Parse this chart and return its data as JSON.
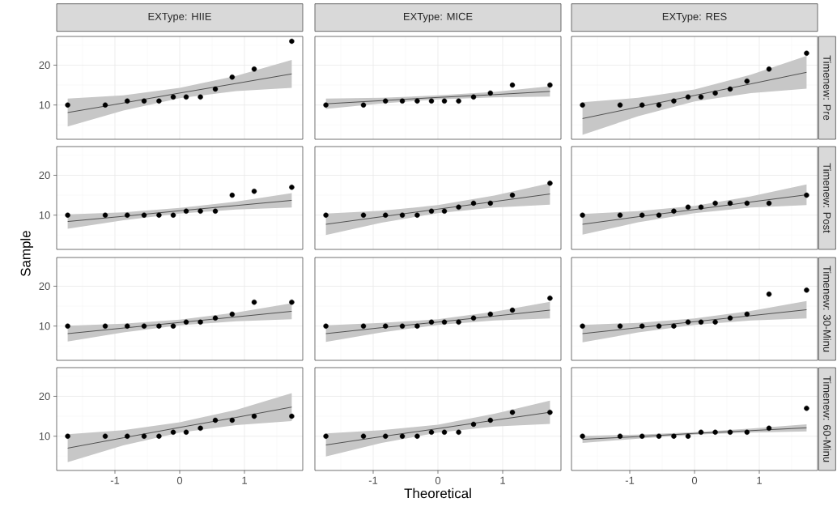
{
  "chart_data": [
    {
      "type": "scatter",
      "title": "EXType: HIIE",
      "x": [
        -1.73,
        -1.15,
        -0.81,
        -0.55,
        -0.32,
        -0.1,
        0.1,
        0.32,
        0.55,
        0.81,
        1.15,
        1.73
      ],
      "xlim": [
        -1.9,
        1.9
      ],
      "ylim": [
        1.4,
        27.2
      ],
      "xticks": [
        -1,
        0,
        1
      ],
      "yticks": [
        10,
        20
      ],
      "grid": true,
      "tick_labels": "y",
      "series": [
        {
          "type": "scatter",
          "color": "#000000",
          "marker": "circle",
          "values": [
            10,
            10,
            11,
            11,
            11,
            12,
            12,
            12,
            14,
            17,
            19,
            26
          ]
        },
        {
          "type": "line",
          "color": "#000000",
          "marker": "none",
          "x": [
            -1.73,
            -0.87,
            0,
            0.87,
            1.73
          ],
          "values": [
            8.1,
            10.5,
            13.0,
            15.4,
            17.8
          ],
          "lower": [
            4.6,
            8.6,
            11.7,
            13.5,
            14.3
          ],
          "upper": [
            11.6,
            12.4,
            14.3,
            17.3,
            21.3
          ]
        }
      ]
    },
    {
      "type": "scatter",
      "title": "EXType: MICE",
      "x": [
        -1.73,
        -1.15,
        -0.81,
        -0.55,
        -0.32,
        -0.1,
        0.1,
        0.32,
        0.55,
        0.81,
        1.15,
        1.73
      ],
      "xlim": [
        -1.9,
        1.9
      ],
      "ylim": [
        1.4,
        27.2
      ],
      "xticks": [
        -1,
        0,
        1
      ],
      "yticks": [
        10,
        20
      ],
      "grid": true,
      "tick_labels": false,
      "series": [
        {
          "type": "scatter",
          "color": "#000000",
          "marker": "circle",
          "values": [
            10,
            10,
            11,
            11,
            11,
            11,
            11,
            11,
            12,
            13,
            15,
            15
          ]
        },
        {
          "type": "line",
          "color": "#000000",
          "marker": "none",
          "x": [
            -1.73,
            -0.87,
            0,
            0.87,
            1.73
          ],
          "values": [
            10.3,
            11.1,
            11.9,
            12.6,
            13.4
          ],
          "lower": [
            9.0,
            10.4,
            11.4,
            11.9,
            12.1
          ],
          "upper": [
            11.6,
            11.8,
            12.4,
            13.3,
            14.7
          ]
        }
      ]
    },
    {
      "type": "scatter",
      "title": "EXType: RES",
      "annotations": [
        "Timenew: Pre"
      ],
      "x": [
        -1.73,
        -1.15,
        -0.81,
        -0.55,
        -0.32,
        -0.1,
        0.1,
        0.32,
        0.55,
        0.81,
        1.15,
        1.73
      ],
      "xlim": [
        -1.9,
        1.9
      ],
      "ylim": [
        1.4,
        27.2
      ],
      "xticks": [
        -1,
        0,
        1
      ],
      "yticks": [
        10,
        20
      ],
      "grid": true,
      "tick_labels": false,
      "series": [
        {
          "type": "scatter",
          "color": "#000000",
          "marker": "circle",
          "values": [
            10,
            10,
            10,
            10,
            11,
            12,
            12,
            13,
            14,
            16,
            19,
            23
          ]
        },
        {
          "type": "line",
          "color": "#000000",
          "marker": "none",
          "x": [
            -1.73,
            -0.87,
            0,
            0.87,
            1.73
          ],
          "values": [
            6.6,
            9.5,
            12.4,
            15.3,
            18.2
          ],
          "lower": [
            2.5,
            7.2,
            10.9,
            13.0,
            14.1
          ],
          "upper": [
            10.7,
            11.8,
            13.9,
            17.6,
            22.3
          ]
        }
      ]
    },
    {
      "type": "scatter",
      "ylabel": "Sample",
      "x": [
        -1.73,
        -1.15,
        -0.81,
        -0.55,
        -0.32,
        -0.1,
        0.1,
        0.32,
        0.55,
        0.81,
        1.15,
        1.73
      ],
      "xlim": [
        -1.9,
        1.9
      ],
      "ylim": [
        1.4,
        27.2
      ],
      "xticks": [
        -1,
        0,
        1
      ],
      "yticks": [
        10,
        20
      ],
      "grid": true,
      "tick_labels": "y",
      "series": [
        {
          "type": "scatter",
          "color": "#000000",
          "marker": "circle",
          "values": [
            10,
            10,
            10,
            10,
            10,
            10,
            11,
            11,
            11,
            15,
            16,
            17
          ]
        },
        {
          "type": "line",
          "color": "#000000",
          "marker": "none",
          "x": [
            -1.73,
            -0.87,
            0,
            0.87,
            1.73
          ],
          "values": [
            8.4,
            9.7,
            11.1,
            12.4,
            13.7
          ],
          "lower": [
            6.6,
            8.7,
            10.4,
            11.4,
            11.9
          ],
          "upper": [
            10.2,
            10.7,
            11.8,
            13.4,
            15.5
          ]
        }
      ]
    },
    {
      "type": "scatter",
      "x": [
        -1.73,
        -1.15,
        -0.81,
        -0.55,
        -0.32,
        -0.1,
        0.1,
        0.32,
        0.55,
        0.81,
        1.15,
        1.73
      ],
      "xlim": [
        -1.9,
        1.9
      ],
      "ylim": [
        1.4,
        27.2
      ],
      "xticks": [
        -1,
        0,
        1
      ],
      "yticks": [
        10,
        20
      ],
      "grid": true,
      "tick_labels": false,
      "series": [
        {
          "type": "scatter",
          "color": "#000000",
          "marker": "circle",
          "values": [
            10,
            10,
            10,
            10,
            10,
            11,
            11,
            12,
            13,
            13,
            15,
            18
          ]
        },
        {
          "type": "line",
          "color": "#000000",
          "marker": "none",
          "x": [
            -1.73,
            -0.87,
            0,
            0.87,
            1.73
          ],
          "values": [
            7.7,
            9.6,
            11.5,
            13.4,
            15.3
          ],
          "lower": [
            5.0,
            8.1,
            10.5,
            11.9,
            12.6
          ],
          "upper": [
            10.4,
            11.1,
            12.5,
            14.9,
            18.0
          ]
        }
      ]
    },
    {
      "type": "scatter",
      "annotations": [
        "Timenew: Post"
      ],
      "x": [
        -1.73,
        -1.15,
        -0.81,
        -0.55,
        -0.32,
        -0.1,
        0.1,
        0.32,
        0.55,
        0.81,
        1.15,
        1.73
      ],
      "xlim": [
        -1.9,
        1.9
      ],
      "ylim": [
        1.4,
        27.2
      ],
      "xticks": [
        -1,
        0,
        1
      ],
      "yticks": [
        10,
        20
      ],
      "grid": true,
      "tick_labels": false,
      "series": [
        {
          "type": "scatter",
          "color": "#000000",
          "marker": "circle",
          "values": [
            10,
            10,
            10,
            10,
            11,
            12,
            12,
            13,
            13,
            13,
            13,
            15
          ]
        },
        {
          "type": "line",
          "color": "#000000",
          "marker": "none",
          "x": [
            -1.73,
            -0.87,
            0,
            0.87,
            1.73
          ],
          "values": [
            7.7,
            9.6,
            11.4,
            13.3,
            15.1
          ],
          "lower": [
            5.1,
            8.2,
            10.5,
            11.9,
            12.5
          ],
          "upper": [
            10.3,
            11.0,
            12.3,
            14.7,
            17.7
          ]
        }
      ]
    },
    {
      "type": "scatter",
      "x": [
        -1.73,
        -1.15,
        -0.81,
        -0.55,
        -0.32,
        -0.1,
        0.1,
        0.32,
        0.55,
        0.81,
        1.15,
        1.73
      ],
      "xlim": [
        -1.9,
        1.9
      ],
      "ylim": [
        1.4,
        27.2
      ],
      "xticks": [
        -1,
        0,
        1
      ],
      "yticks": [
        10,
        20
      ],
      "grid": true,
      "tick_labels": "y",
      "series": [
        {
          "type": "scatter",
          "color": "#000000",
          "marker": "circle",
          "values": [
            10,
            10,
            10,
            10,
            10,
            10,
            11,
            11,
            12,
            13,
            16,
            16
          ]
        },
        {
          "type": "line",
          "color": "#000000",
          "marker": "none",
          "x": [
            -1.73,
            -0.87,
            0,
            0.87,
            1.73
          ],
          "values": [
            8.1,
            9.5,
            10.9,
            12.3,
            13.7
          ],
          "lower": [
            6.1,
            8.4,
            10.2,
            11.2,
            11.7
          ],
          "upper": [
            10.1,
            10.6,
            11.6,
            13.4,
            15.7
          ]
        }
      ]
    },
    {
      "type": "scatter",
      "x": [
        -1.73,
        -1.15,
        -0.81,
        -0.55,
        -0.32,
        -0.1,
        0.1,
        0.32,
        0.55,
        0.81,
        1.15,
        1.73
      ],
      "xlim": [
        -1.9,
        1.9
      ],
      "ylim": [
        1.4,
        27.2
      ],
      "xticks": [
        -1,
        0,
        1
      ],
      "yticks": [
        10,
        20
      ],
      "grid": true,
      "tick_labels": false,
      "series": [
        {
          "type": "scatter",
          "color": "#000000",
          "marker": "circle",
          "values": [
            10,
            10,
            10,
            10,
            10,
            11,
            11,
            11,
            12,
            13,
            14,
            17
          ]
        },
        {
          "type": "line",
          "color": "#000000",
          "marker": "none",
          "x": [
            -1.73,
            -0.87,
            0,
            0.87,
            1.73
          ],
          "values": [
            8.1,
            9.6,
            11.0,
            12.5,
            14.0
          ],
          "lower": [
            6.0,
            8.4,
            10.3,
            11.4,
            11.9
          ],
          "upper": [
            10.2,
            10.8,
            11.7,
            13.6,
            16.1
          ]
        }
      ]
    },
    {
      "type": "scatter",
      "annotations": [
        "Timenew: 30-Minu"
      ],
      "x": [
        -1.73,
        -1.15,
        -0.81,
        -0.55,
        -0.32,
        -0.1,
        0.1,
        0.32,
        0.55,
        0.81,
        1.15,
        1.73
      ],
      "xlim": [
        -1.9,
        1.9
      ],
      "ylim": [
        1.4,
        27.2
      ],
      "xticks": [
        -1,
        0,
        1
      ],
      "yticks": [
        10,
        20
      ],
      "grid": true,
      "tick_labels": false,
      "series": [
        {
          "type": "scatter",
          "color": "#000000",
          "marker": "circle",
          "values": [
            10,
            10,
            10,
            10,
            10,
            11,
            11,
            11,
            12,
            13,
            18,
            19
          ]
        },
        {
          "type": "line",
          "color": "#000000",
          "marker": "none",
          "x": [
            -1.73,
            -0.87,
            0,
            0.87,
            1.73
          ],
          "values": [
            8.1,
            9.6,
            11.1,
            12.6,
            14.1
          ],
          "lower": [
            5.9,
            8.4,
            10.3,
            11.4,
            11.9
          ],
          "upper": [
            10.3,
            10.8,
            11.9,
            13.8,
            16.3
          ]
        }
      ]
    },
    {
      "type": "scatter",
      "x": [
        -1.73,
        -1.15,
        -0.81,
        -0.55,
        -0.32,
        -0.1,
        0.1,
        0.32,
        0.55,
        0.81,
        1.15,
        1.73
      ],
      "xlim": [
        -1.9,
        1.9
      ],
      "ylim": [
        1.4,
        27.2
      ],
      "xticks": [
        -1,
        0,
        1
      ],
      "yticks": [
        10,
        20
      ],
      "grid": true,
      "series": [
        {
          "type": "scatter",
          "color": "#000000",
          "marker": "circle",
          "values": [
            10,
            10,
            10,
            10,
            10,
            11,
            11,
            12,
            14,
            14,
            15,
            15
          ]
        },
        {
          "type": "line",
          "color": "#000000",
          "marker": "none",
          "x": [
            -1.73,
            -0.87,
            0,
            0.87,
            1.73
          ],
          "values": [
            7.0,
            9.6,
            12.2,
            14.7,
            17.3
          ],
          "lower": [
            3.5,
            7.7,
            10.9,
            12.8,
            13.8
          ],
          "upper": [
            10.5,
            11.5,
            13.5,
            16.6,
            20.8
          ]
        }
      ]
    },
    {
      "type": "scatter",
      "xlabel": "Theoretical",
      "x": [
        -1.73,
        -1.15,
        -0.81,
        -0.55,
        -0.32,
        -0.1,
        0.1,
        0.32,
        0.55,
        0.81,
        1.15,
        1.73
      ],
      "xlim": [
        -1.9,
        1.9
      ],
      "ylim": [
        1.4,
        27.2
      ],
      "xticks": [
        -1,
        0,
        1
      ],
      "yticks": [
        10,
        20
      ],
      "grid": true,
      "tick_labels": "x",
      "series": [
        {
          "type": "scatter",
          "color": "#000000",
          "marker": "circle",
          "values": [
            10,
            10,
            10,
            10,
            10,
            11,
            11,
            11,
            13,
            14,
            16,
            16
          ]
        },
        {
          "type": "line",
          "color": "#000000",
          "marker": "none",
          "x": [
            -1.73,
            -0.87,
            0,
            0.87,
            1.73
          ],
          "values": [
            7.8,
            9.9,
            11.9,
            14.0,
            16.0
          ],
          "lower": [
            4.9,
            8.3,
            10.9,
            12.4,
            13.1
          ],
          "upper": [
            10.7,
            11.5,
            12.9,
            15.6,
            18.9
          ]
        }
      ]
    },
    {
      "type": "scatter",
      "annotations": [
        "Timenew: 60-Minu"
      ],
      "x": [
        -1.73,
        -1.15,
        -0.81,
        -0.55,
        -0.32,
        -0.1,
        0.1,
        0.32,
        0.55,
        0.81,
        1.15,
        1.73
      ],
      "xlim": [
        -1.9,
        1.9
      ],
      "ylim": [
        1.4,
        27.2
      ],
      "xticks": [
        -1,
        0,
        1
      ],
      "yticks": [
        10,
        20
      ],
      "grid": true,
      "tick_labels": "x",
      "series": [
        {
          "type": "scatter",
          "color": "#000000",
          "marker": "circle",
          "values": [
            10,
            10,
            10,
            10,
            10,
            10,
            11,
            11,
            11,
            11,
            12,
            17
          ]
        },
        {
          "type": "line",
          "color": "#000000",
          "marker": "none",
          "x": [
            -1.73,
            -0.87,
            0,
            0.87,
            1.73
          ],
          "values": [
            9.2,
            9.9,
            10.7,
            11.4,
            12.1
          ],
          "lower": [
            8.3,
            9.4,
            10.4,
            10.9,
            11.2
          ],
          "upper": [
            10.1,
            10.4,
            11.0,
            11.9,
            13.0
          ]
        }
      ]
    }
  ]
}
